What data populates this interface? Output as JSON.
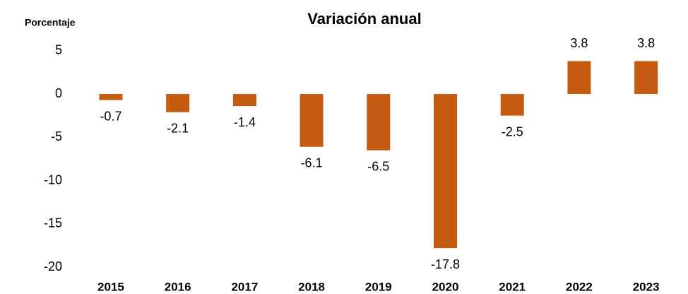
{
  "chart_data": {
    "type": "bar",
    "title": "Variación anual",
    "y_label": "Porcentaje",
    "categories": [
      "2015",
      "2016",
      "2017",
      "2018",
      "2019",
      "2020",
      "2021",
      "2022",
      "2023"
    ],
    "values": [
      -0.7,
      -2.1,
      -1.4,
      -6.1,
      -6.5,
      -17.8,
      -2.5,
      3.8,
      3.8
    ],
    "color": "#c55a11",
    "ylim": [
      -20,
      5
    ],
    "yticks": [
      5,
      0,
      -5,
      -10,
      -15,
      -20
    ],
    "grid": false
  }
}
